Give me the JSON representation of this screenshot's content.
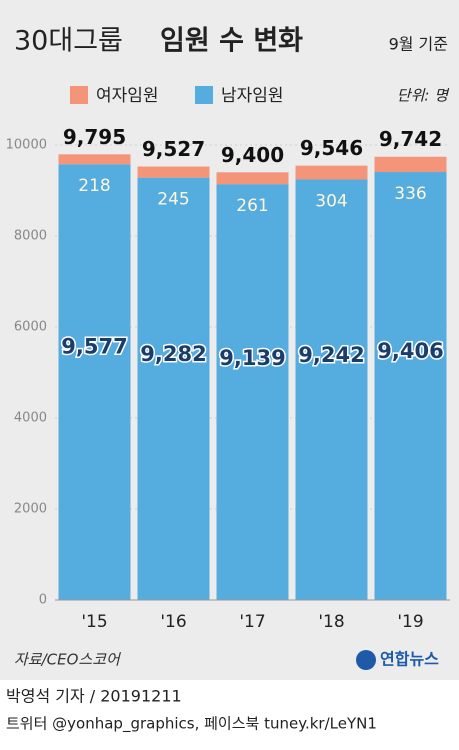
{
  "chart_data": {
    "type": "stacked_bar",
    "title": {
      "light": "30대그룹",
      "bold": "임원 수 변화"
    },
    "subtitle": "9월 기준",
    "unit": "단위: 명",
    "categories": [
      "'15",
      "'16",
      "'17",
      "'18",
      "'19"
    ],
    "series": [
      {
        "name": "남자임원",
        "color": "#55acdf",
        "values": [
          9577,
          9282,
          9139,
          9242,
          9406
        ],
        "value_labels": [
          "9,577",
          "9,282",
          "9,139",
          "9,242",
          "9,406"
        ]
      },
      {
        "name": "여자임원",
        "color": "#f4957a",
        "values": [
          218,
          245,
          261,
          304,
          336
        ]
      }
    ],
    "totals": [
      9795,
      9527,
      9400,
      9546,
      9742
    ],
    "total_labels": [
      "9,795",
      "9,527",
      "9,400",
      "9,546",
      "9,742"
    ],
    "ylim": [
      0,
      10000
    ],
    "yticks": [
      0,
      2000,
      4000,
      6000,
      8000,
      10000
    ],
    "grid": true,
    "source": "자료/CEO스코어",
    "logo": "연합뉴스",
    "byline": "박영석 기자 / 20191211",
    "social": "트위터 @yonhap_graphics, 페이스북 tuney.kr/LeYN1"
  }
}
